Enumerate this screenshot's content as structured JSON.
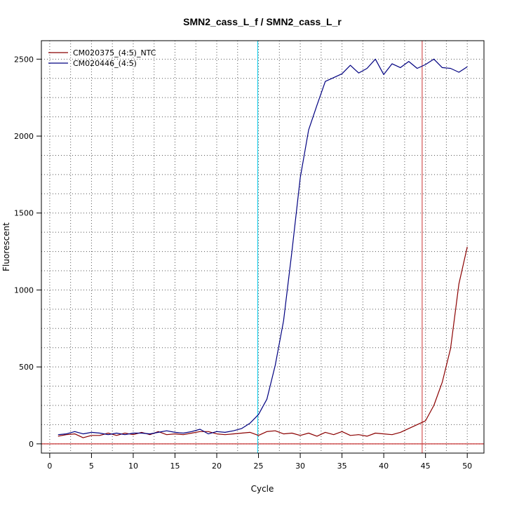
{
  "chart_data": {
    "type": "line",
    "title": "SMN2_cass_L_f / SMN2_cass_L_r",
    "xlabel": "Cycle",
    "ylabel": "Fluorescent",
    "xlim": [
      -1,
      52
    ],
    "ylim": [
      -60,
      2620
    ],
    "xticks": [
      0,
      5,
      10,
      15,
      20,
      25,
      30,
      35,
      40,
      45,
      50
    ],
    "yticks": [
      0,
      500,
      1000,
      1500,
      2000,
      2500
    ],
    "x_dotted_grid": [
      0,
      2.5,
      5,
      7.5,
      10,
      12.5,
      15,
      17.5,
      20,
      22.5,
      25,
      27.5,
      30,
      32.5,
      35,
      37.5,
      40,
      42.5,
      45,
      47.5,
      50
    ],
    "y_dotted_grid": [
      0,
      125,
      250,
      375,
      500,
      625,
      750,
      875,
      1000,
      1125,
      1250,
      1375,
      1500,
      1625,
      1750,
      1875,
      2000,
      2125,
      2250,
      2375,
      2500
    ],
    "legend_position": "top-left",
    "threshold_line": {
      "y": 0,
      "color": "#bb0000"
    },
    "vertical_lines": [
      {
        "x": 24.9,
        "color": "#00ccee"
      },
      {
        "x": 44.6,
        "color": "#cc3333"
      }
    ],
    "series": [
      {
        "name": "CM020375_(4:5)_NTC",
        "color": "#8b0000",
        "x": [
          1,
          2,
          3,
          4,
          5,
          6,
          7,
          8,
          9,
          10,
          11,
          12,
          13,
          14,
          15,
          16,
          17,
          18,
          19,
          20,
          21,
          22,
          23,
          24,
          25,
          26,
          27,
          28,
          29,
          30,
          31,
          32,
          33,
          34,
          35,
          36,
          37,
          38,
          39,
          40,
          41,
          42,
          43,
          44,
          45,
          46,
          47,
          48,
          49,
          50
        ],
        "y": [
          50,
          60,
          65,
          40,
          55,
          55,
          70,
          55,
          70,
          60,
          75,
          60,
          80,
          60,
          65,
          60,
          70,
          80,
          80,
          65,
          60,
          65,
          70,
          75,
          55,
          80,
          85,
          65,
          70,
          55,
          70,
          50,
          75,
          60,
          80,
          55,
          60,
          50,
          70,
          65,
          60,
          75,
          100,
          125,
          150,
          250,
          400,
          620,
          1040,
          1280
        ]
      },
      {
        "name": "CM020446_(4:5)",
        "color": "#000080",
        "x": [
          1,
          2,
          3,
          4,
          5,
          6,
          7,
          8,
          9,
          10,
          11,
          12,
          13,
          14,
          15,
          16,
          17,
          18,
          19,
          20,
          21,
          22,
          23,
          24,
          25,
          26,
          27,
          28,
          29,
          30,
          31,
          32,
          33,
          34,
          35,
          36,
          37,
          38,
          39,
          40,
          41,
          42,
          43,
          44,
          45,
          46,
          47,
          48,
          49,
          50
        ],
        "y": [
          60,
          65,
          80,
          65,
          75,
          70,
          60,
          70,
          60,
          70,
          70,
          65,
          75,
          85,
          75,
          70,
          80,
          95,
          65,
          80,
          75,
          85,
          100,
          135,
          190,
          290,
          510,
          800,
          1250,
          1730,
          2040,
          2200,
          2355,
          2380,
          2405,
          2460,
          2410,
          2440,
          2500,
          2400,
          2470,
          2445,
          2485,
          2440,
          2465,
          2500,
          2445,
          2440,
          2415,
          2450
        ]
      }
    ]
  }
}
